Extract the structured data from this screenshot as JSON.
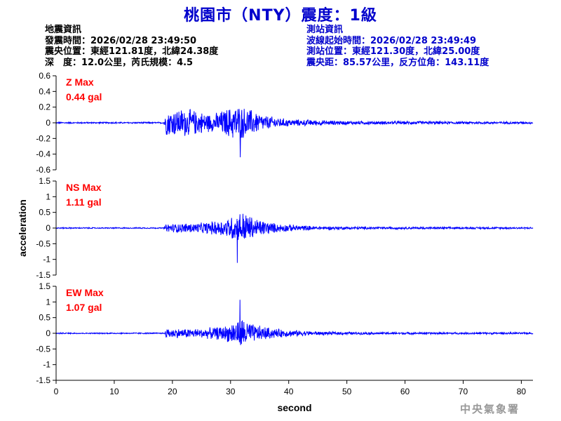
{
  "title": "桃園市（NTY）震度：1級",
  "quake_info": {
    "heading": "地震資訊",
    "time": "發震時間：2026/02/28 23:49:50",
    "epicenter": "震央位置：東經121.81度，北緯24.38度",
    "depth_mag": "深　度：12.0公里，芮氏規模：4.5"
  },
  "station_info": {
    "heading": "測站資訊",
    "wave_start": "波線起始時間：2026/02/28 23:49:49",
    "location": "測站位置：東經121.30度，北緯25.00度",
    "distance": "震央距：85.57公里，反方位角：143.11度"
  },
  "agency": "中央氣象署",
  "chart_data": [
    {
      "type": "line",
      "component": "Z",
      "label": "Z Max",
      "peak_label": "0.44 gal",
      "peak": 0.44,
      "ylim": [
        -0.6,
        0.6
      ],
      "yticks": [
        "0.6",
        "0.4",
        "0.2",
        "0",
        "-0.2",
        "-0.4",
        "-0.6"
      ],
      "yvals": [
        0.6,
        0.4,
        0.2,
        0,
        -0.2,
        -0.4,
        -0.6
      ],
      "noise": 0.01,
      "envelope": [
        [
          0,
          0.01
        ],
        [
          18.5,
          0.01
        ],
        [
          19,
          0.18
        ],
        [
          22,
          0.2
        ],
        [
          27,
          0.12
        ],
        [
          31,
          0.25
        ],
        [
          33,
          0.2
        ],
        [
          36,
          0.1
        ],
        [
          40,
          0.05
        ],
        [
          50,
          0.025
        ],
        [
          82,
          0.015
        ]
      ],
      "color": "#0000ff"
    },
    {
      "type": "line",
      "component": "NS",
      "label": "NS Max",
      "peak_label": "1.11 gal",
      "peak": 1.11,
      "ylim": [
        -1.5,
        1.5
      ],
      "yticks": [
        "1.5",
        "1",
        "0.5",
        "0",
        "-0.5",
        "-1",
        "-1.5"
      ],
      "yvals": [
        1.5,
        1.0,
        0.5,
        0,
        -0.5,
        -1.0,
        -1.5
      ],
      "noise": 0.02,
      "envelope": [
        [
          0,
          0.02
        ],
        [
          18.5,
          0.02
        ],
        [
          19,
          0.15
        ],
        [
          25,
          0.18
        ],
        [
          29,
          0.3
        ],
        [
          32,
          0.6
        ],
        [
          34,
          0.35
        ],
        [
          38,
          0.15
        ],
        [
          45,
          0.06
        ],
        [
          55,
          0.04
        ],
        [
          82,
          0.03
        ]
      ],
      "color": "#0000ff"
    },
    {
      "type": "line",
      "component": "EW",
      "label": "EW Max",
      "peak_label": "1.07 gal",
      "peak": 1.07,
      "ylim": [
        -1.5,
        1.5
      ],
      "yticks": [
        "1.5",
        "1",
        "0.5",
        "0",
        "-0.5",
        "-1",
        "-1.5"
      ],
      "yvals": [
        1.5,
        1.0,
        0.5,
        0,
        -0.5,
        -1.0,
        -1.5
      ],
      "noise": 0.02,
      "envelope": [
        [
          0,
          0.02
        ],
        [
          18.5,
          0.02
        ],
        [
          19,
          0.16
        ],
        [
          25,
          0.16
        ],
        [
          29,
          0.25
        ],
        [
          32,
          0.55
        ],
        [
          34,
          0.3
        ],
        [
          38,
          0.15
        ],
        [
          45,
          0.06
        ],
        [
          55,
          0.04
        ],
        [
          82,
          0.03
        ]
      ],
      "color": "#0000ff"
    }
  ],
  "xaxis": {
    "label": "second",
    "ticks": [
      "0",
      "10",
      "20",
      "30",
      "40",
      "50",
      "60",
      "70",
      "80"
    ],
    "tick_values": [
      0,
      10,
      20,
      30,
      40,
      50,
      60,
      70,
      80
    ],
    "range": [
      0,
      82
    ]
  },
  "yaxis": {
    "label": "acceleration"
  },
  "colors": {
    "trace": "#0000ff",
    "peak_text": "#ff0000",
    "title": "#0000cc"
  }
}
